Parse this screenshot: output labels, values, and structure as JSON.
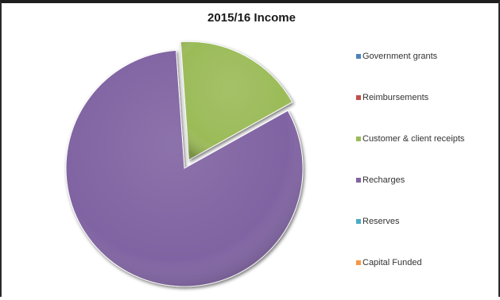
{
  "chart_data": {
    "type": "pie",
    "title": "2015/16 Income",
    "legend_position": "right",
    "exploded": [
      "Customer & client receipts"
    ],
    "slices": [
      {
        "label": "Government grants",
        "value": 0,
        "color": "#4f81bd"
      },
      {
        "label": "Reimbursements",
        "value": 0,
        "color": "#c0504d"
      },
      {
        "label": "Customer & client receipts",
        "value": 18,
        "color": "#9bbb59"
      },
      {
        "label": "Recharges",
        "value": 82,
        "color": "#8064a2"
      },
      {
        "label": "Reserves",
        "value": 0,
        "color": "#4bacc6"
      },
      {
        "label": "Capital Funded",
        "value": 0,
        "color": "#f79646"
      }
    ]
  }
}
